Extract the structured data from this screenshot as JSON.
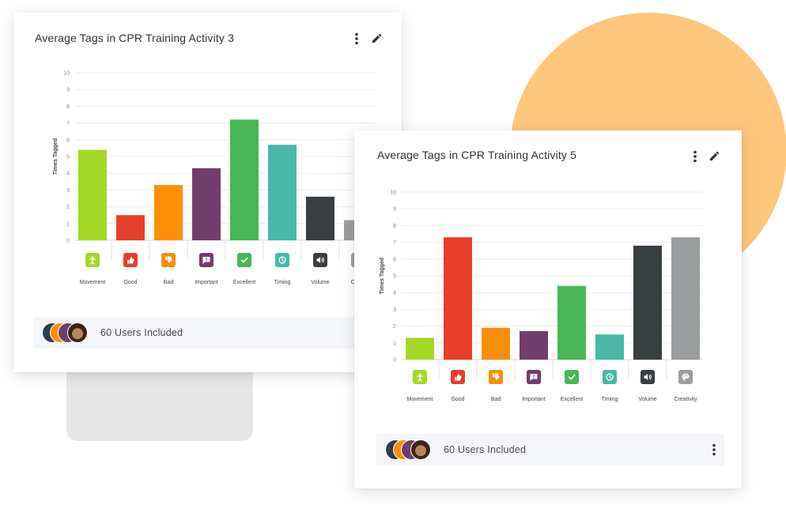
{
  "cards": [
    {
      "title": "Average Tags in CPR Training Activity 3",
      "footer": {
        "users_label": "60 Users Included"
      }
    },
    {
      "title": "Average Tags in CPR Training Activity 5",
      "footer": {
        "users_label": "60 Users Included"
      }
    }
  ],
  "tag_icons": [
    "movement-icon",
    "thumbs-up-icon",
    "thumbs-down-icon",
    "exclamation-comment-icon",
    "checkmark-icon",
    "clock-icon",
    "speaker-icon",
    "palette-icon"
  ],
  "colors": {
    "series": [
      "#a6d82a",
      "#e63f2a",
      "#fb8f04",
      "#713d6c",
      "#49b657",
      "#48b9a7",
      "#393e41",
      "#9b9e9f"
    ],
    "accent_circle": "#fdc67d",
    "footer_bg": "#f4f6f9"
  },
  "chart_data": [
    {
      "type": "bar",
      "title": "Average Tags in CPR Training Activity 3",
      "categories": [
        "Movement",
        "Good",
        "Bad",
        "Important",
        "Excellent",
        "Timing",
        "Volume",
        "Creativity"
      ],
      "category_labels_visible": [
        "Movement",
        "Good",
        "Bad",
        "Important",
        "Excellent",
        "Timing",
        "Volume",
        "Creati"
      ],
      "values": [
        5.4,
        1.5,
        3.3,
        4.3,
        7.2,
        5.7,
        2.6,
        1.2
      ],
      "ylabel": "Times Tagged",
      "xlabel": "",
      "ylim": [
        0,
        10
      ],
      "yticks": [
        "0",
        "1",
        "2",
        "3",
        "4",
        "5",
        "6",
        "7",
        "8",
        "9",
        "10"
      ],
      "grid": true
    },
    {
      "type": "bar",
      "title": "Average Tags in CPR Training Activity 5",
      "categories": [
        "Movement",
        "Good",
        "Bad",
        "Important",
        "Excellent",
        "Timing",
        "Volume",
        "Creativity"
      ],
      "category_labels_visible": [
        "Movement",
        "Good",
        "Bad",
        "Important",
        "Excellent",
        "Timing",
        "Volume",
        "Creativity"
      ],
      "values": [
        1.3,
        7.3,
        1.9,
        1.7,
        4.4,
        1.5,
        6.8,
        7.3
      ],
      "ylabel": "Times Tagged",
      "xlabel": "",
      "ylim": [
        0,
        10
      ],
      "yticks": [
        "0",
        "1",
        "2",
        "3",
        "4",
        "5",
        "6",
        "7",
        "8",
        "9",
        "10"
      ],
      "grid": true
    }
  ]
}
